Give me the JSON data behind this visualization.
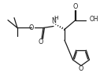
{
  "bg_color": "#ffffff",
  "line_color": "#1a1a1a",
  "lw": 0.9,
  "figsize": [
    1.41,
    0.93
  ],
  "dpi": 100,
  "xlim": [
    0,
    141
  ],
  "ylim": [
    0,
    93
  ]
}
